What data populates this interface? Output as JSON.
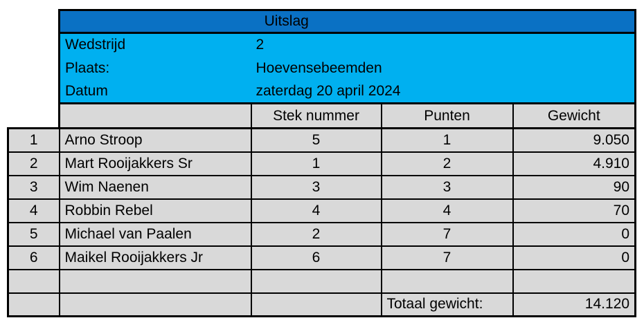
{
  "title": "Uitslag",
  "meta": {
    "rows": [
      {
        "label": "Wedstrijd",
        "value": "2"
      },
      {
        "label": "Plaats:",
        "value": "Hoevensebeemden"
      },
      {
        "label": "Datum",
        "value": "zaterdag 20 april 2024"
      }
    ]
  },
  "results": {
    "headers": {
      "stek": "Stek nummer",
      "punten": "Punten",
      "gewicht": "Gewicht"
    },
    "rows": [
      {
        "rank": "1",
        "name": "Arno Stroop",
        "stek": "5",
        "punten": "1",
        "gewicht": "9.050"
      },
      {
        "rank": "2",
        "name": "Mart Rooijakkers Sr",
        "stek": "1",
        "punten": "2",
        "gewicht": "4.910"
      },
      {
        "rank": "3",
        "name": "Wim Naenen",
        "stek": "3",
        "punten": "3",
        "gewicht": "90"
      },
      {
        "rank": "4",
        "name": "Robbin Rebel",
        "stek": "4",
        "punten": "4",
        "gewicht": "70"
      },
      {
        "rank": "5",
        "name": "Michael van Paalen",
        "stek": "2",
        "punten": "7",
        "gewicht": "0"
      },
      {
        "rank": "6",
        "name": "Maikel Rooijakkers Jr",
        "stek": "6",
        "punten": "7",
        "gewicht": "0"
      }
    ],
    "total": {
      "label": "Totaal gewicht:",
      "value": "14.120"
    }
  },
  "colors": {
    "header_blue": "#0a71c4",
    "band_cyan": "#00b0f0",
    "cell_gray": "#d9d9d9"
  }
}
